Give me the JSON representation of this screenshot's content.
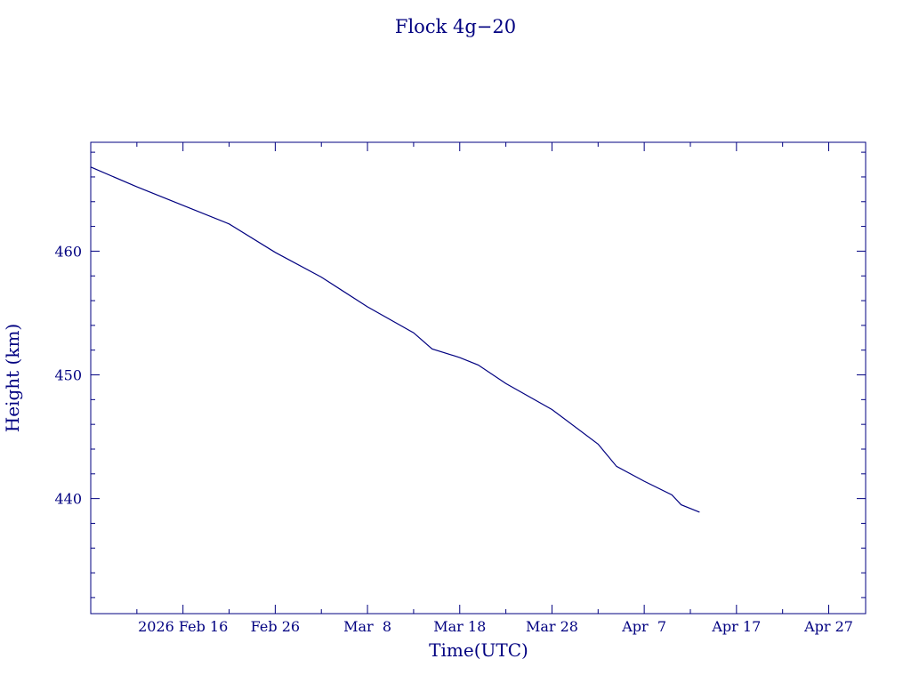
{
  "chart_data": {
    "type": "line",
    "title": "Flock 4g−20",
    "x_label": "Time(UTC)",
    "y_label": "Height (km)",
    "color": "#000080",
    "x": [
      "2026-02-06",
      "2026-02-11",
      "2026-02-16",
      "2026-02-21",
      "2026-02-26",
      "2026-03-03",
      "2026-03-08",
      "2026-03-13",
      "2026-03-15",
      "2026-03-18",
      "2026-03-20",
      "2026-03-23",
      "2026-03-28",
      "2026-04-02",
      "2026-04-04",
      "2026-04-07",
      "2026-04-10",
      "2026-04-11",
      "2026-04-13"
    ],
    "values": [
      466.8,
      465.2,
      463.7,
      462.2,
      459.9,
      457.9,
      455.5,
      453.4,
      452.1,
      451.4,
      450.8,
      449.3,
      447.2,
      444.4,
      442.6,
      441.4,
      440.3,
      439.5,
      438.9
    ],
    "xlim": [
      "2026-02-06",
      "2026-05-01"
    ],
    "xticks": [
      {
        "value": "2026-02-16",
        "label": "2026 Feb 16"
      },
      {
        "value": "2026-02-26",
        "label": "Feb 26"
      },
      {
        "value": "2026-03-08",
        "label": "Mar  8"
      },
      {
        "value": "2026-03-18",
        "label": "Mar 18"
      },
      {
        "value": "2026-03-28",
        "label": "Mar 28"
      },
      {
        "value": "2026-04-07",
        "label": "Apr  7"
      },
      {
        "value": "2026-04-17",
        "label": "Apr 17"
      },
      {
        "value": "2026-04-27",
        "label": "Apr 27"
      }
    ],
    "xminorticks": [
      "2026-02-11",
      "2026-02-21",
      "2026-03-03",
      "2026-03-13",
      "2026-03-23",
      "2026-04-02",
      "2026-04-12",
      "2026-04-22"
    ],
    "ylim": [
      430.7,
      468.8
    ],
    "yticks": [
      440,
      450,
      460
    ],
    "yminorticks": [
      432,
      434,
      436,
      438,
      442,
      444,
      446,
      448,
      452,
      454,
      456,
      458,
      462,
      464,
      466,
      468
    ]
  }
}
